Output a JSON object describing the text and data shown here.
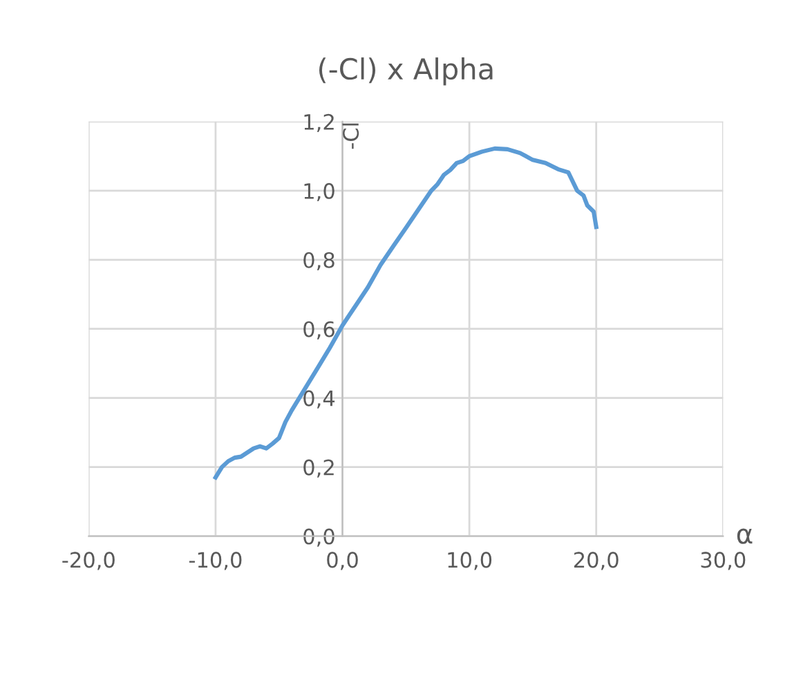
{
  "chart_data": {
    "type": "line",
    "title": "(-Cl) x Alpha",
    "xlabel": "α",
    "ylabel": "-Cl",
    "x": [
      -10,
      -9.5,
      -9,
      -8.5,
      -8,
      -7.5,
      -7,
      -6.5,
      -6,
      -5.5,
      -5,
      -4.5,
      -4,
      -3,
      -2,
      -1,
      0,
      1,
      2,
      3,
      4,
      5,
      6,
      7,
      7.5,
      8,
      8.5,
      9,
      9.5,
      10,
      11,
      12,
      13,
      14,
      15,
      16,
      17,
      17.8,
      18.5,
      19,
      19.3,
      19.8,
      20
    ],
    "series": [
      {
        "color": "#5b9bd5",
        "values": [
          0.17,
          0.2,
          0.217,
          0.227,
          0.23,
          0.242,
          0.254,
          0.26,
          0.254,
          0.268,
          0.284,
          0.33,
          0.364,
          0.424,
          0.484,
          0.545,
          0.61,
          0.665,
          0.72,
          0.785,
          0.839,
          0.892,
          0.946,
          1.0,
          1.019,
          1.046,
          1.06,
          1.08,
          1.086,
          1.1,
          1.113,
          1.122,
          1.12,
          1.109,
          1.089,
          1.08,
          1.062,
          1.053,
          1.0,
          0.986,
          0.957,
          0.939,
          0.895
        ]
      }
    ],
    "xlim": [
      -20,
      30
    ],
    "ylim": [
      0,
      1.2
    ],
    "xticks": [
      {
        "value": -20,
        "label": "-20,0"
      },
      {
        "value": -10,
        "label": "-10,0"
      },
      {
        "value": 0,
        "label": "0,0"
      },
      {
        "value": 10,
        "label": "10,0"
      },
      {
        "value": 20,
        "label": "20,0"
      },
      {
        "value": 30,
        "label": "30,0"
      }
    ],
    "yticks": [
      {
        "value": 0,
        "label": "0,0"
      },
      {
        "value": 0.2,
        "label": "0,2"
      },
      {
        "value": 0.4,
        "label": "0,4"
      },
      {
        "value": 0.6,
        "label": "0,6"
      },
      {
        "value": 0.8,
        "label": "0,8"
      },
      {
        "value": 1.0,
        "label": "1,0"
      },
      {
        "value": 1.2,
        "label": "1,2"
      }
    ],
    "grid": true,
    "marker": "none",
    "line_style": "solid"
  }
}
